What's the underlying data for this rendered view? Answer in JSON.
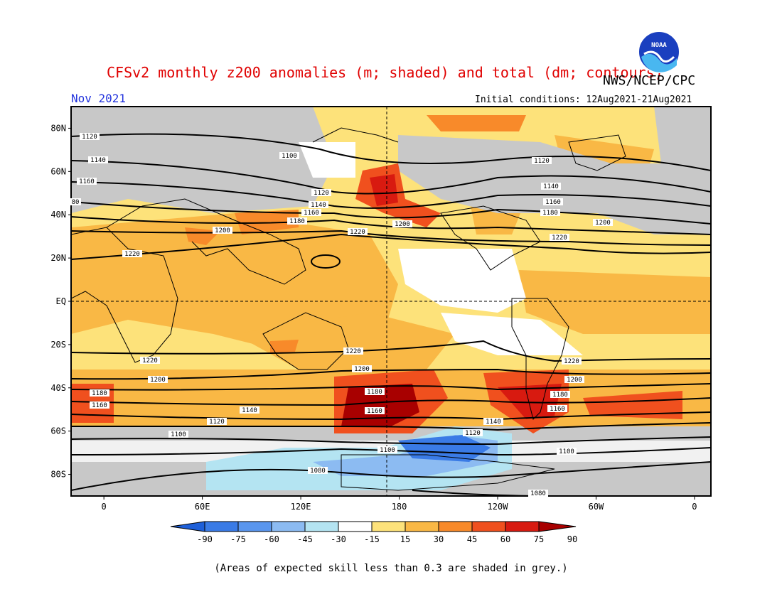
{
  "header": {
    "title": "CFSv2 monthly z200 anomalies (m; shaded) and total (dm; contours)",
    "agency": "NWS/NCEP/CPC",
    "month": "Nov 2021",
    "initial_conditions": "Initial conditions: 12Aug2021-21Aug2021",
    "logo_text": "NOAA",
    "logo_icon": "noaa-logo-icon"
  },
  "map": {
    "lat_ticks": [
      "80N",
      "60N",
      "40N",
      "20N",
      "EQ",
      "20S",
      "40S",
      "60S",
      "80S"
    ],
    "lon_ticks": [
      "0",
      "60E",
      "120E",
      "180",
      "120W",
      "60W",
      "0"
    ],
    "contour_labels": [
      {
        "id": "c1120a",
        "text": "1120"
      },
      {
        "id": "c1140a",
        "text": "1140"
      },
      {
        "id": "c1160a",
        "text": "1160"
      },
      {
        "id": "c80",
        "text": "80"
      },
      {
        "id": "c1100a",
        "text": "1100"
      },
      {
        "id": "c1200a",
        "text": "1200"
      },
      {
        "id": "c1220a",
        "text": "1220"
      },
      {
        "id": "c1120b",
        "text": "1120"
      },
      {
        "id": "c1140b",
        "text": "1140"
      },
      {
        "id": "c1160b",
        "text": "1160"
      },
      {
        "id": "c1180a",
        "text": "1180"
      },
      {
        "id": "c1220b",
        "text": "1220"
      },
      {
        "id": "c1200b",
        "text": "1200"
      },
      {
        "id": "c1120c",
        "text": "1120"
      },
      {
        "id": "c1140c",
        "text": "1140"
      },
      {
        "id": "c1160c",
        "text": "1160"
      },
      {
        "id": "c1180b",
        "text": "1180"
      },
      {
        "id": "c1200c",
        "text": "1200"
      },
      {
        "id": "c1220c",
        "text": "1220"
      },
      {
        "id": "c1220d",
        "text": "1220"
      },
      {
        "id": "c1200d",
        "text": "1200"
      },
      {
        "id": "c1220e",
        "text": "1220"
      },
      {
        "id": "c1200e",
        "text": "1200"
      },
      {
        "id": "c1180c",
        "text": "1180"
      },
      {
        "id": "c1160d",
        "text": "1160"
      },
      {
        "id": "c1140d",
        "text": "1140"
      },
      {
        "id": "c1120d",
        "text": "1120"
      },
      {
        "id": "c1100b",
        "text": "1100"
      },
      {
        "id": "c1180d",
        "text": "1180"
      },
      {
        "id": "c1160e",
        "text": "1160"
      },
      {
        "id": "c1120e",
        "text": "1120"
      },
      {
        "id": "c1100c",
        "text": "1100"
      },
      {
        "id": "c1080a",
        "text": "1080"
      },
      {
        "id": "c1220f",
        "text": "1220"
      },
      {
        "id": "c1200f",
        "text": "1200"
      },
      {
        "id": "c1180e",
        "text": "1180"
      },
      {
        "id": "c1160f",
        "text": "1160"
      },
      {
        "id": "c1140e",
        "text": "1140"
      },
      {
        "id": "c1100d",
        "text": "1100"
      },
      {
        "id": "c1080b",
        "text": "1080"
      }
    ]
  },
  "colorbar": {
    "labels": [
      "-90",
      "-75",
      "-60",
      "-45",
      "-30",
      "-15",
      "15",
      "30",
      "45",
      "60",
      "75",
      "90"
    ],
    "colors": [
      "#1e5fd8",
      "#3a7be6",
      "#5a96ee",
      "#8cbbf2",
      "#b4e4f2",
      "#ffffff",
      "#fde27a",
      "#f9b845",
      "#f88a2a",
      "#f0501e",
      "#d81a10",
      "#a80000"
    ]
  },
  "footer": {
    "note": "(Areas of expected skill less than 0.3 are shaded in grey.)"
  }
}
